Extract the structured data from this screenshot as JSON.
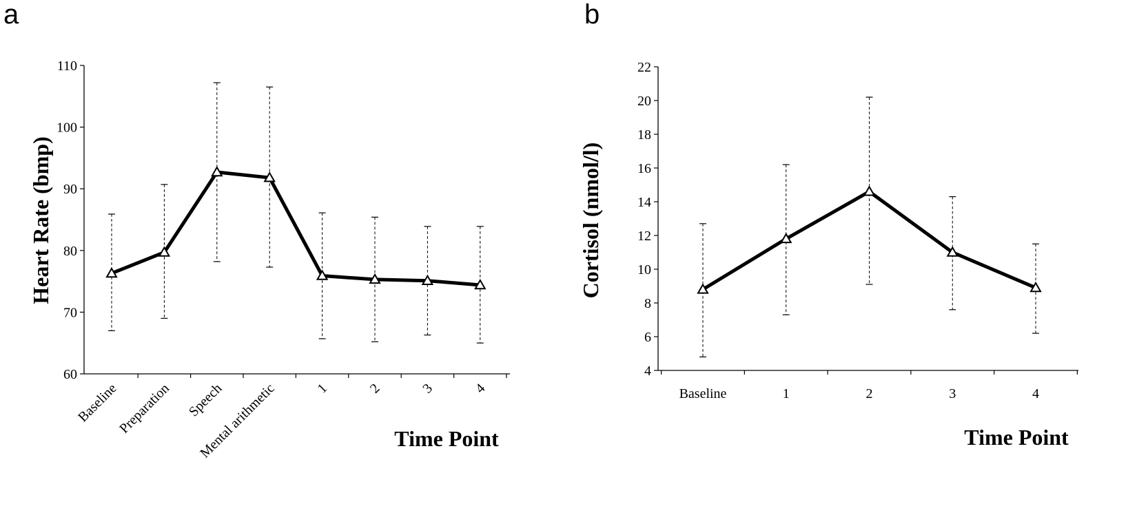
{
  "panels": [
    {
      "letter": "a"
    },
    {
      "letter": "b"
    }
  ],
  "chart_data": [
    {
      "type": "line",
      "xlabel": "Time Point",
      "ylabel": "Heart Rate (bmp)",
      "ylim": [
        60,
        110
      ],
      "yticks": [
        60,
        70,
        80,
        90,
        100,
        110
      ],
      "categories": [
        "Baseline",
        "Preparation",
        "Speech",
        "Mental arithmetic",
        "1",
        "2",
        "3",
        "4"
      ],
      "series": [
        {
          "values": [
            76.3,
            79.7,
            92.7,
            91.8,
            75.9,
            75.3,
            75.1,
            74.4
          ],
          "error_low": [
            67.0,
            69.0,
            78.2,
            77.3,
            65.7,
            65.2,
            66.3,
            65.0
          ],
          "error_high": [
            85.9,
            90.7,
            107.2,
            106.5,
            86.1,
            85.4,
            83.9,
            83.9
          ],
          "marker": "open-triangle"
        }
      ],
      "tick_label_rotation": "-45deg",
      "grid": false,
      "legend": "none"
    },
    {
      "type": "line",
      "xlabel": "Time Point",
      "ylabel": "Cortisol (nmol/l)",
      "ylim": [
        4,
        22
      ],
      "yticks": [
        4,
        6,
        8,
        10,
        12,
        14,
        16,
        18,
        20,
        22
      ],
      "categories": [
        "Baseline",
        "1",
        "2",
        "3",
        "4"
      ],
      "series": [
        {
          "values": [
            8.8,
            11.8,
            14.6,
            11.0,
            8.9
          ],
          "error_low": [
            4.8,
            7.3,
            9.1,
            7.6,
            6.2
          ],
          "error_high": [
            12.7,
            16.2,
            20.2,
            14.3,
            11.5
          ],
          "marker": "open-triangle"
        }
      ],
      "tick_label_rotation": "0deg",
      "grid": false,
      "legend": "none"
    }
  ]
}
